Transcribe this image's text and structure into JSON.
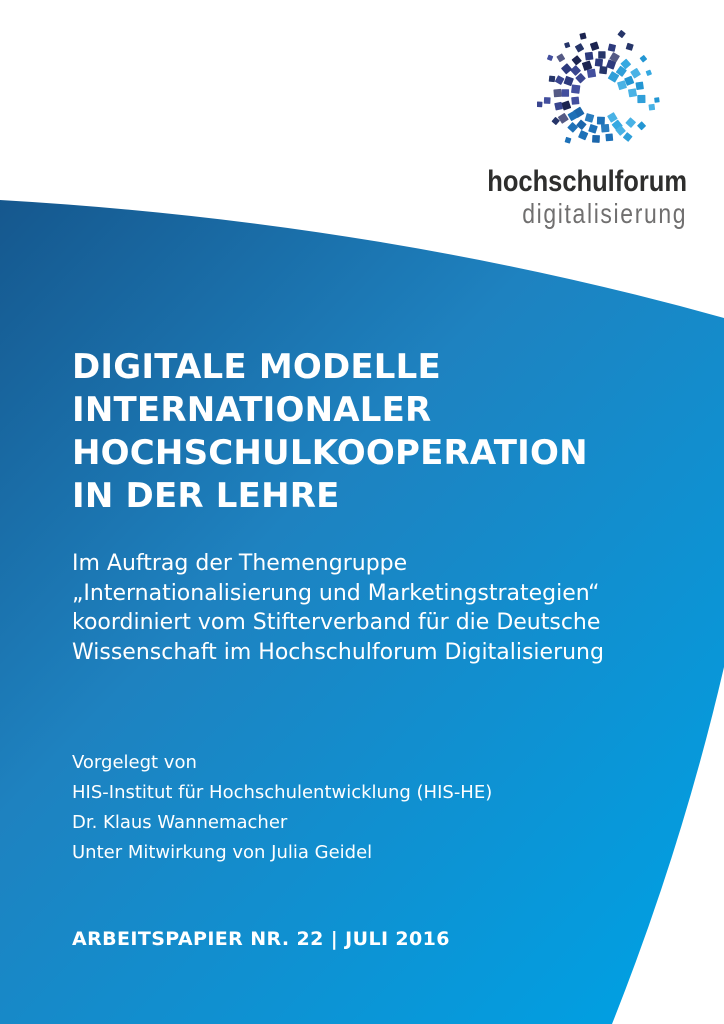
{
  "logo": {
    "line1": "hochschulforum",
    "line2": "digitalisierung",
    "mosaic_icon": "circular-pixel-mosaic",
    "colors": {
      "wordmark_dark": "#2e2e2d",
      "wordmark_light": "#706f6f",
      "tiles_dark_navy": "#2d3a7d",
      "tiles_medium_blue": "#1d71b8",
      "tiles_light_blue": "#36a9e1"
    }
  },
  "cover": {
    "title_lines": [
      "DIGITALE MODELLE",
      "INTERNATIONALER",
      "HOCHSCHULKOOPERATION",
      "IN DER LEHRE"
    ],
    "subtitle_lines": [
      "Im Auftrag der Themengruppe",
      "„Internationalisierung und Marketingstrategien“",
      "koordiniert vom Stifterverband für die Deutsche",
      "Wissenschaft im Hochschulforum Digitalisierung"
    ],
    "credit_lines": [
      "Vorgelegt von",
      "HIS-Institut für Hochschulentwicklung (HIS-HE)",
      "Dr. Klaus Wannemacher",
      "Unter Mitwirkung von Julia Geidel"
    ],
    "footer": "ARBEITSPAPIER NR. 22 | JULI 2016",
    "colors": {
      "gradient_top_left": "#15568c",
      "gradient_middle": "#1e82c0",
      "gradient_bottom_right": "#00a0e3",
      "text": "#ffffff"
    }
  }
}
